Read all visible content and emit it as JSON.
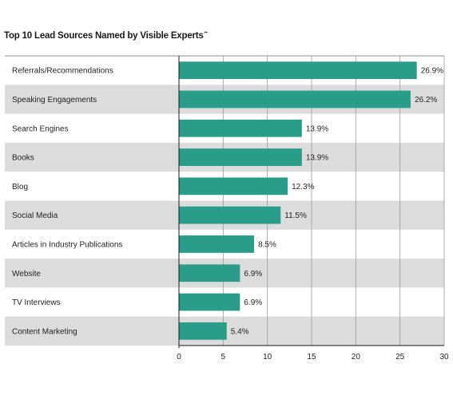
{
  "chart_data": {
    "type": "bar",
    "orientation": "horizontal",
    "title": "Top 10 Lead Sources Named by Visible Experts",
    "title_mark": "℠",
    "categories": [
      "Referrals/Recommendations",
      "Speaking Engagements",
      "Search Engines",
      "Books",
      "Blog",
      "Social Media",
      "Articles in Industry Publications",
      "Website",
      "TV Interviews",
      "Content Marketing"
    ],
    "values": [
      26.9,
      26.2,
      13.9,
      13.9,
      12.3,
      11.5,
      8.5,
      6.9,
      6.9,
      5.4
    ],
    "value_labels": [
      "26.9%",
      "26.2%",
      "13.9%",
      "13.9%",
      "12.3%",
      "11.5%",
      "8.5%",
      "6.9%",
      "6.9%",
      "5.4%"
    ],
    "xlim": [
      0,
      30
    ],
    "xticks": [
      0,
      5,
      10,
      15,
      20,
      25,
      30
    ],
    "xtick_labels": [
      "0",
      "5",
      "10",
      "15",
      "20",
      "25",
      "30"
    ],
    "grid": "vertical",
    "row_shading": "alternating",
    "colors": {
      "bar": "#2a9d8a",
      "shade": "#dcdcdc",
      "grid": "#9a9a9a",
      "axis": "#1a1a1a"
    }
  }
}
